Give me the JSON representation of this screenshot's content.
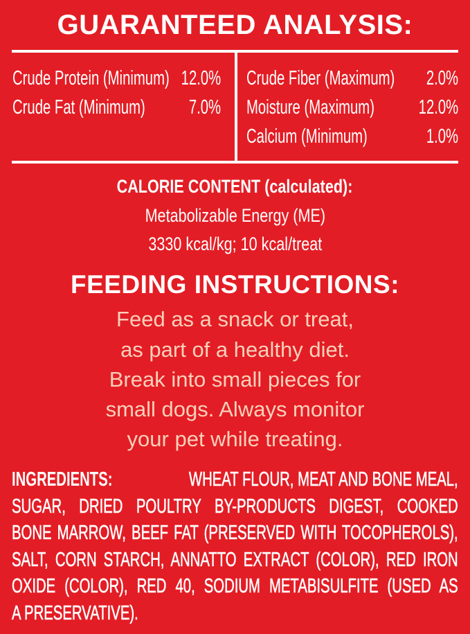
{
  "guaranteed_analysis": {
    "title": "GUARANTEED ANALYSIS:",
    "left": [
      {
        "label": "Crude Protein (Minimum)",
        "value": "12.0%"
      },
      {
        "label": "Crude Fat (Minimum)",
        "value": "7.0%"
      }
    ],
    "right": [
      {
        "label": "Crude Fiber (Maximum)",
        "value": "2.0%"
      },
      {
        "label": "Moisture (Maximum)",
        "value": "12.0%"
      },
      {
        "label": "Calcium (Minimum)",
        "value": "1.0%"
      }
    ]
  },
  "calorie": {
    "title": "CALORIE CONTENT (calculated):",
    "line1": "Metabolizable Energy (ME)",
    "line2": "3330 kcal/kg; 10 kcal/treat"
  },
  "feeding": {
    "title": "FEEDING INSTRUCTIONS:",
    "lines": [
      "Feed as a snack or treat,",
      "as part of a healthy diet.",
      "Break into small pieces for",
      "small dogs. Always monitor",
      "your pet while treating."
    ]
  },
  "ingredients": {
    "label": "INGREDIENTS:",
    "lines": [
      "WHEAT FLOUR, MEAT AND BONE MEAL,",
      "SUGAR, DRIED POULTRY BY-PRODUCTS DIGEST, COOKED",
      "BONE MARROW, BEEF FAT (PRESERVED WITH TOCOPHEROLS),",
      "SALT, CORN STARCH, ANNATTO EXTRACT (COLOR), RED IRON",
      "OXIDE (COLOR), RED 40, SODIUM METABISULFITE (USED AS",
      "A PRESERVATIVE)."
    ]
  },
  "colors": {
    "background": "#e31d25",
    "text": "#ffffff",
    "feeding_text": "#fbd0bb"
  }
}
